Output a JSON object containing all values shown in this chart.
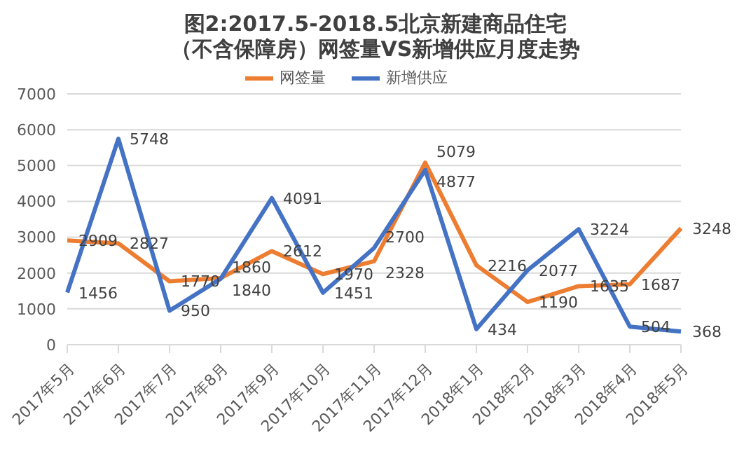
{
  "chart_data": {
    "type": "line",
    "title": "图2:2017.5-2018.5北京新建商品住宅（不含保障房）网签量VS新增供应月度走势",
    "categories": [
      "2017年5月",
      "2017年6月",
      "2017年7月",
      "2017年8月",
      "2017年9月",
      "2017年10月",
      "2017年11月",
      "2017年12月",
      "2018年1月",
      "2018年2月",
      "2018年3月",
      "2018年4月",
      "2018年5月"
    ],
    "series": [
      {
        "name": "网签量",
        "color": "#ed7d31",
        "values": [
          2909,
          2827,
          1770,
          1860,
          2612,
          1970,
          2328,
          5079,
          2216,
          1190,
          1635,
          1687,
          3248
        ]
      },
      {
        "name": "新增供应",
        "color": "#4472c4",
        "values": [
          1456,
          5748,
          950,
          1840,
          4091,
          1451,
          2700,
          4877,
          434,
          2077,
          3224,
          504,
          368
        ]
      }
    ],
    "ylim": [
      0,
      7000
    ],
    "yticks": [
      0,
      1000,
      2000,
      3000,
      4000,
      5000,
      6000,
      7000
    ],
    "grid": "y",
    "legend": "top",
    "marker": "none",
    "line_style": "solid",
    "data_labels": true
  }
}
